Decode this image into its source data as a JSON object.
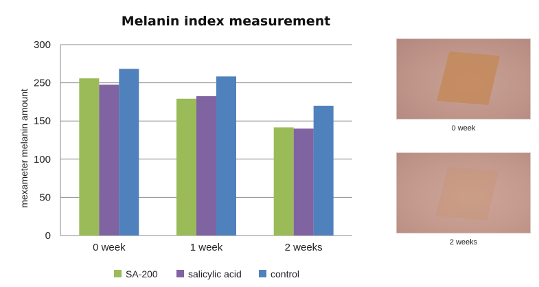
{
  "chart_data": {
    "type": "bar",
    "title": "Melanin index measurement",
    "ylabel": "mexameter melanin amount",
    "xlabel": "",
    "categories": [
      "0 week",
      "1 week",
      "2 weeks"
    ],
    "y_tick_labels": [
      "0",
      "50",
      "100",
      "150",
      "250",
      "300"
    ],
    "ylim": [
      0,
      300
    ],
    "grid": true,
    "legend_position": "bottom",
    "series": [
      {
        "name": "SA-200",
        "color": "#9bbb59",
        "values": [
          247,
          215,
          170
        ]
      },
      {
        "name": "salicylic acid",
        "color": "#8064a2",
        "values": [
          237,
          219,
          168
        ]
      },
      {
        "name": "control",
        "color": "#4f81bd",
        "values": [
          262,
          250,
          204
        ]
      }
    ]
  },
  "photos": [
    {
      "caption": "0 week",
      "patch_color": "#c4895a",
      "patch_opacity": 0.85
    },
    {
      "caption": "2 weeks",
      "patch_color": "#c99470",
      "patch_opacity": 0.4
    }
  ]
}
